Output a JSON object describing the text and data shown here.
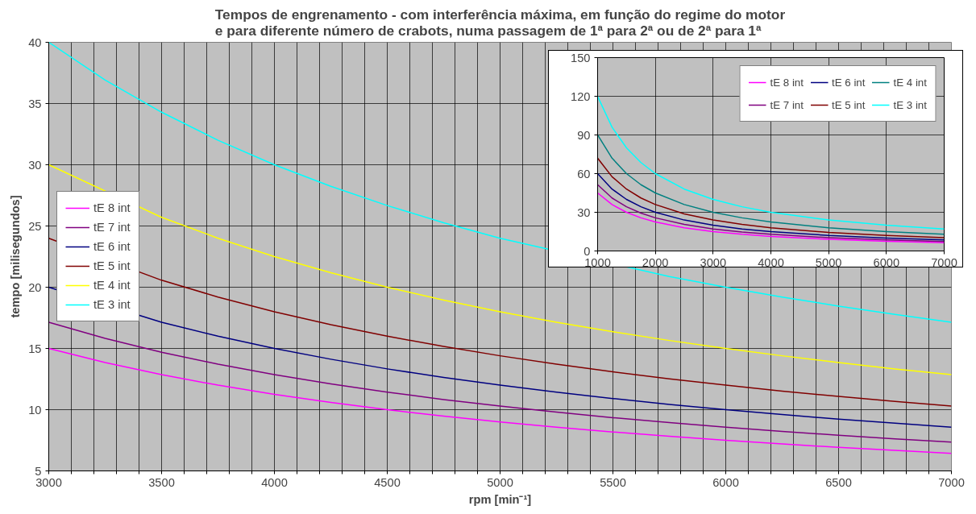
{
  "chart_data": [
    {
      "type": "line",
      "title": "Tempos de engrenamento - com interferência máxima, em função do regime do motor\ne para diferente número de crabots, numa passagem de 1ª para 2ª ou de 2ª para 1ª",
      "xlabel": "rpm [min⁻¹]",
      "ylabel": "tempo [milisegundos]",
      "x": [
        3000,
        3250,
        3500,
        3750,
        4000,
        4250,
        4500,
        4750,
        5000,
        5250,
        5500,
        5750,
        6000,
        6250,
        6500,
        6750,
        7000
      ],
      "series": [
        {
          "name": "tE 8 int",
          "color": "#ff00ff",
          "values": [
            15,
            13.85,
            12.86,
            12,
            11.25,
            10.59,
            10,
            9.47,
            9,
            8.57,
            8.18,
            7.83,
            7.5,
            7.2,
            6.92,
            6.67,
            6.43
          ]
        },
        {
          "name": "tE 7 int",
          "color": "#800080",
          "values": [
            17.14,
            15.82,
            14.69,
            13.71,
            12.86,
            12.1,
            11.43,
            10.83,
            10.29,
            9.8,
            9.35,
            8.94,
            8.57,
            8.23,
            7.91,
            7.62,
            7.35
          ]
        },
        {
          "name": "tE 6 int",
          "color": "#000080",
          "x": [
            3000,
            3500,
            3750,
            4000,
            4250,
            4500,
            4750,
            5000,
            5250,
            5500,
            5750,
            6000,
            6250,
            6500,
            6750,
            7000
          ],
          "values": [
            20,
            17.14,
            16,
            15,
            14.12,
            13.33,
            12.63,
            12,
            11.43,
            10.91,
            10.43,
            10,
            9.6,
            9.23,
            8.89,
            8.57
          ]
        },
        {
          "name": "tE 5 int",
          "color": "#800000",
          "x": [
            3000,
            3500,
            3750,
            4000,
            4250,
            4500,
            4750,
            5000,
            5250,
            5500,
            5750,
            6000,
            6250,
            6500,
            6750,
            7000
          ],
          "values": [
            24,
            20.57,
            19.2,
            18,
            16.94,
            16,
            15.16,
            14.4,
            13.71,
            13.09,
            12.52,
            12,
            11.52,
            11.08,
            10.67,
            10.29
          ]
        },
        {
          "name": "tE 4 int",
          "color": "#ffff00",
          "x": [
            3000,
            3500,
            3750,
            4000,
            4250,
            4500,
            4750,
            5000,
            5250,
            5500,
            5750,
            6000,
            6250,
            6500,
            6750,
            7000
          ],
          "values": [
            30,
            25.71,
            24,
            22.5,
            21.18,
            20,
            18.95,
            18,
            17.14,
            16.36,
            15.65,
            15,
            14.4,
            13.85,
            13.33,
            12.86
          ]
        },
        {
          "name": "tE 3 int",
          "color": "#00ffff",
          "x": [
            3000,
            3250,
            3500,
            3750,
            4000,
            4250,
            4500,
            4750,
            5000,
            5750,
            6000,
            6250,
            6500,
            6750,
            7000
          ],
          "values": [
            40,
            36.92,
            34.29,
            32,
            30,
            28.24,
            26.67,
            25.26,
            24,
            20.87,
            20,
            19.2,
            18.46,
            17.78,
            17.14
          ]
        }
      ],
      "xlim": [
        3000,
        7000
      ],
      "xticks": [
        3000,
        {
          "value": 3100,
          "label": null
        },
        {
          "value": 3200,
          "label": null
        },
        {
          "value": 3300,
          "label": null
        },
        {
          "value": 3400,
          "label": null
        },
        3500,
        {
          "value": 3600,
          "label": null
        },
        {
          "value": 3700,
          "label": null
        },
        {
          "value": 3800,
          "label": null
        },
        {
          "value": 3900,
          "label": null
        },
        4000,
        {
          "value": 4100,
          "label": null
        },
        {
          "value": 4200,
          "label": null
        },
        {
          "value": 4300,
          "label": null
        },
        {
          "value": 4400,
          "label": null
        },
        4500,
        {
          "value": 4600,
          "label": null
        },
        {
          "value": 4700,
          "label": null
        },
        {
          "value": 4800,
          "label": null
        },
        {
          "value": 4900,
          "label": null
        },
        5000,
        {
          "value": 5100,
          "label": null
        },
        {
          "value": 5200,
          "label": null
        },
        {
          "value": 5300,
          "label": null
        },
        {
          "value": 5400,
          "label": null
        },
        5500,
        {
          "value": 5600,
          "label": null
        },
        {
          "value": 5700,
          "label": null
        },
        {
          "value": 5800,
          "label": null
        },
        {
          "value": 5900,
          "label": null
        },
        6000,
        {
          "value": 6100,
          "label": null
        },
        {
          "value": 6200,
          "label": null
        },
        {
          "value": 6300,
          "label": null
        },
        {
          "value": 6400,
          "label": null
        },
        6500,
        {
          "value": 6600,
          "label": null
        },
        {
          "value": 6700,
          "label": null
        },
        {
          "value": 6800,
          "label": null
        },
        {
          "value": 6900,
          "label": null
        },
        7000
      ],
      "ylim": [
        5,
        40
      ],
      "yticks": [
        5,
        10,
        15,
        20,
        25,
        30,
        35,
        40
      ],
      "grid": true,
      "legend": "left"
    },
    {
      "type": "line",
      "x": [
        1000,
        1250,
        1500,
        1750,
        2000,
        2500,
        3000,
        3500,
        4000,
        5000,
        6000,
        7000
      ],
      "series": [
        {
          "name": "tE 8 int",
          "color": "#ff00ff",
          "values": [
            45,
            36,
            30,
            25.7,
            22.5,
            18,
            15,
            12.9,
            11.3,
            9,
            7.5,
            6.4
          ]
        },
        {
          "name": "tE 7 int",
          "color": "#800080",
          "values": [
            51.4,
            41.1,
            34.3,
            29.4,
            25.7,
            20.6,
            17.1,
            14.7,
            12.9,
            10.3,
            8.6,
            7.3
          ]
        },
        {
          "name": "tE 6 int",
          "color": "#000080",
          "values": [
            60,
            48,
            40,
            34.3,
            30,
            24,
            20,
            17.1,
            15,
            12,
            10,
            8.6
          ]
        },
        {
          "name": "tE 5 int",
          "color": "#800000",
          "values": [
            72,
            57.6,
            48,
            41.1,
            36,
            28.8,
            24,
            20.6,
            18,
            14.4,
            12,
            10.3
          ]
        },
        {
          "name": "tE 4 int",
          "color": "#008080",
          "values": [
            90,
            72,
            60,
            51.4,
            45,
            36,
            30,
            25.7,
            22.5,
            18,
            15,
            12.9
          ]
        },
        {
          "name": "tE 3 int",
          "color": "#00ffff",
          "values": [
            120,
            96,
            80,
            68.6,
            60,
            48,
            40,
            34.3,
            30,
            24,
            20,
            17.1
          ]
        }
      ],
      "xlim": [
        1000,
        7000
      ],
      "xticks": [
        1000,
        2000,
        3000,
        4000,
        5000,
        6000,
        7000
      ],
      "ylim": [
        0,
        150
      ],
      "yticks": [
        0,
        30,
        60,
        90,
        120,
        150
      ],
      "grid": true,
      "legend": "top right"
    }
  ]
}
